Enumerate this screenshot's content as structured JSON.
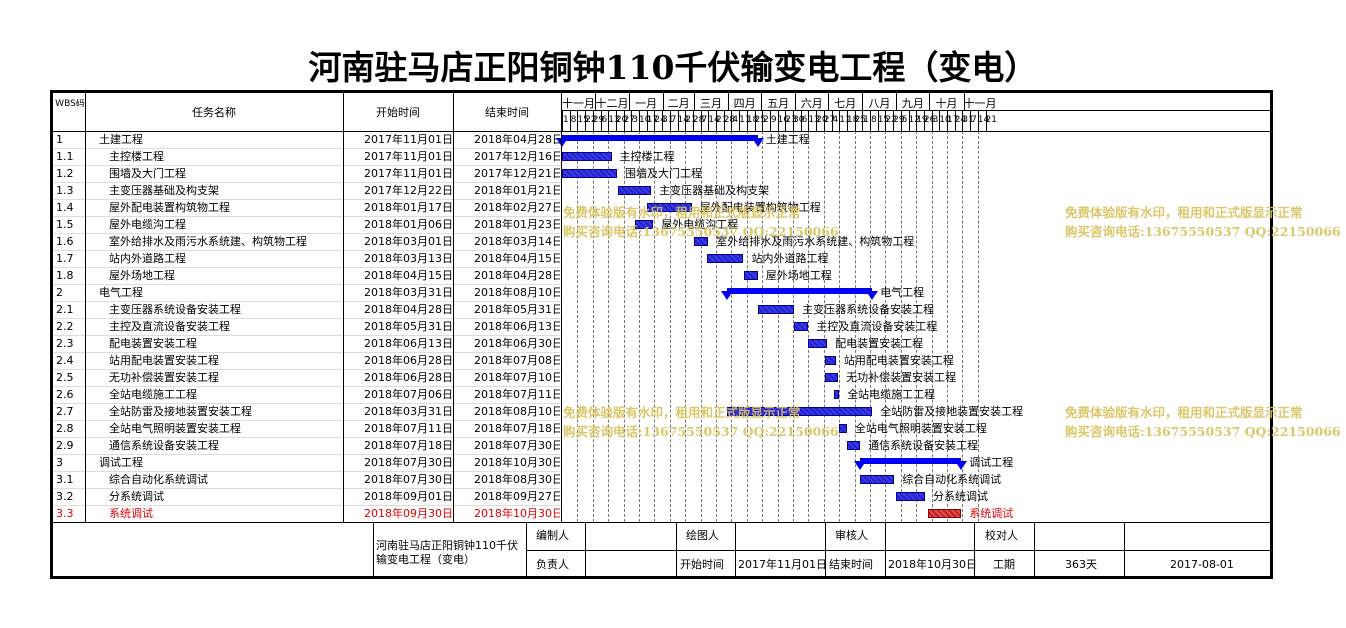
{
  "title": "河南驻马店正阳铜钟110千伏输变电工程（变电）",
  "headers": {
    "wbs": "WBS码",
    "task": "任务名称",
    "start": "开始时间",
    "end": "结束时间"
  },
  "months": [
    "十一月",
    "十二月",
    "一月",
    "二月",
    "三月",
    "四月",
    "五月",
    "六月",
    "七月",
    "八月",
    "九月",
    "十月",
    "十一月"
  ],
  "days": [
    "1",
    "8",
    "15",
    "22",
    "29",
    "6",
    "13",
    "20",
    "27",
    "3",
    "10",
    "17",
    "24",
    "31",
    "7",
    "14",
    "21",
    "28",
    "7",
    "14",
    "21",
    "28",
    "4",
    "11",
    "18",
    "25",
    "2",
    "9",
    "16",
    "23",
    "30",
    "6",
    "13",
    "20",
    "27",
    "4",
    "11",
    "18",
    "25",
    "1",
    "8",
    "15",
    "22",
    "29",
    "5",
    "12",
    "19",
    "26",
    "3",
    "10",
    "17",
    "24",
    "31",
    "7",
    "14",
    "21"
  ],
  "tasks": [
    {
      "wbs": "1",
      "name": "土建工程",
      "start": "2017年11月01日",
      "end": "2018年04月28日",
      "summary": true
    },
    {
      "wbs": "1.1",
      "name": "主控楼工程",
      "start": "2017年11月01日",
      "end": "2017年12月16日"
    },
    {
      "wbs": "1.2",
      "name": "围墙及大门工程",
      "start": "2017年11月01日",
      "end": "2017年12月21日"
    },
    {
      "wbs": "1.3",
      "name": "主变压器基础及构支架",
      "start": "2017年12月22日",
      "end": "2018年01月21日"
    },
    {
      "wbs": "1.4",
      "name": "屋外配电装置构筑物工程",
      "start": "2018年01月17日",
      "end": "2018年02月27日"
    },
    {
      "wbs": "1.5",
      "name": "屋外电缆沟工程",
      "start": "2018年01月06日",
      "end": "2018年01月23日"
    },
    {
      "wbs": "1.6",
      "name": "室外给排水及雨污水系统建、构筑物工程",
      "start": "2018年03月01日",
      "end": "2018年03月14日"
    },
    {
      "wbs": "1.7",
      "name": "站内外道路工程",
      "start": "2018年03月13日",
      "end": "2018年04月15日"
    },
    {
      "wbs": "1.8",
      "name": "屋外场地工程",
      "start": "2018年04月15日",
      "end": "2018年04月28日"
    },
    {
      "wbs": "2",
      "name": "电气工程",
      "start": "2018年03月31日",
      "end": "2018年08月10日",
      "summary": true
    },
    {
      "wbs": "2.1",
      "name": "主变压器系统设备安装工程",
      "start": "2018年04月28日",
      "end": "2018年05月31日"
    },
    {
      "wbs": "2.2",
      "name": "主控及直流设备安装工程",
      "start": "2018年05月31日",
      "end": "2018年06月13日"
    },
    {
      "wbs": "2.3",
      "name": "配电装置安装工程",
      "start": "2018年06月13日",
      "end": "2018年06月30日"
    },
    {
      "wbs": "2.4",
      "name": "站用配电装置安装工程",
      "start": "2018年06月28日",
      "end": "2018年07月08日"
    },
    {
      "wbs": "2.5",
      "name": "无功补偿装置安装工程",
      "start": "2018年06月28日",
      "end": "2018年07月10日"
    },
    {
      "wbs": "2.6",
      "name": "全站电缆施工工程",
      "start": "2018年07月06日",
      "end": "2018年07月11日"
    },
    {
      "wbs": "2.7",
      "name": "全站防雷及接地装置安装工程",
      "start": "2018年03月31日",
      "end": "2018年08月10日"
    },
    {
      "wbs": "2.8",
      "name": "全站电气照明装置安装工程",
      "start": "2018年07月11日",
      "end": "2018年07月18日"
    },
    {
      "wbs": "2.9",
      "name": "通信系统设备安装工程",
      "start": "2018年07月18日",
      "end": "2018年07月30日"
    },
    {
      "wbs": "3",
      "name": "调试工程",
      "start": "2018年07月30日",
      "end": "2018年10月30日",
      "summary": true
    },
    {
      "wbs": "3.1",
      "name": "综合自动化系统调试",
      "start": "2018年07月30日",
      "end": "2018年08月30日"
    },
    {
      "wbs": "3.2",
      "name": "分系统调试",
      "start": "2018年09月01日",
      "end": "2018年09月27日"
    },
    {
      "wbs": "3.3",
      "name": "系统调试",
      "start": "2018年09月30日",
      "end": "2018年10月30日",
      "critical": true
    }
  ],
  "gantt": {
    "range_start": "2017-11-01",
    "bars": [
      {
        "from": "2017-11-01",
        "to": "2018-04-28"
      },
      {
        "from": "2017-11-01",
        "to": "2017-12-16"
      },
      {
        "from": "2017-11-01",
        "to": "2017-12-21"
      },
      {
        "from": "2017-12-22",
        "to": "2018-01-21"
      },
      {
        "from": "2018-01-17",
        "to": "2018-02-27"
      },
      {
        "from": "2018-01-06",
        "to": "2018-01-23"
      },
      {
        "from": "2018-03-01",
        "to": "2018-03-14"
      },
      {
        "from": "2018-03-13",
        "to": "2018-04-15"
      },
      {
        "from": "2018-04-15",
        "to": "2018-04-28"
      },
      {
        "from": "2018-03-31",
        "to": "2018-08-10"
      },
      {
        "from": "2018-04-28",
        "to": "2018-05-31"
      },
      {
        "from": "2018-05-31",
        "to": "2018-06-13"
      },
      {
        "from": "2018-06-13",
        "to": "2018-06-30"
      },
      {
        "from": "2018-06-28",
        "to": "2018-07-08"
      },
      {
        "from": "2018-06-28",
        "to": "2018-07-10"
      },
      {
        "from": "2018-07-06",
        "to": "2018-07-11"
      },
      {
        "from": "2018-03-31",
        "to": "2018-08-10"
      },
      {
        "from": "2018-07-11",
        "to": "2018-07-18"
      },
      {
        "from": "2018-07-18",
        "to": "2018-07-30"
      },
      {
        "from": "2018-07-30",
        "to": "2018-10-30"
      },
      {
        "from": "2018-07-30",
        "to": "2018-08-30"
      },
      {
        "from": "2018-09-01",
        "to": "2018-09-27"
      },
      {
        "from": "2018-09-30",
        "to": "2018-10-30"
      }
    ]
  },
  "watermarks": {
    "line1": "免费体验版有水印，租用和正式版显示正常",
    "line2": "购买咨询电话:13675550537 QQ:22150066"
  },
  "footer": {
    "project": "河南驻马店正阳铜钟110千伏输变电工程（变电）",
    "editor_label": "编制人",
    "drawer_label": "绘图人",
    "reviewer_label": "审核人",
    "checker_label": "校对人",
    "owner_label": "负责人",
    "start_label": "开始时间",
    "start_value": "2017年11月01日",
    "end_label": "结束时间",
    "end_value": "2018年10月30日",
    "duration_label": "工期",
    "duration_value": "363天",
    "date_value": "2017-08-01"
  },
  "colors": {
    "bar": "#2222cc",
    "summary": "#0000ee",
    "critical": "#e00000",
    "watermark": "#d8c25a"
  }
}
